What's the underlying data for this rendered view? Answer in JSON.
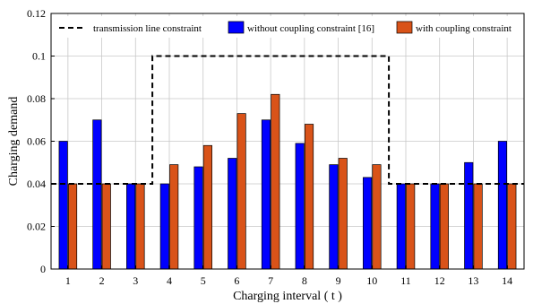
{
  "chart_data": {
    "type": "bar",
    "xlabel": "Charging interval ( t )",
    "ylabel": "Charging demand",
    "ylim": [
      0,
      0.12
    ],
    "yticks": [
      "0",
      "0.02",
      "0.04",
      "0.06",
      "0.08",
      "0.1",
      "0.12"
    ],
    "categories": [
      "1",
      "2",
      "3",
      "4",
      "5",
      "6",
      "7",
      "8",
      "9",
      "10",
      "11",
      "12",
      "13",
      "14"
    ],
    "grid": true,
    "legend_position": "top",
    "series": [
      {
        "name": "without coupling constraint [16]",
        "color": "#0000ff",
        "values": [
          0.06,
          0.07,
          0.04,
          0.04,
          0.048,
          0.052,
          0.07,
          0.059,
          0.049,
          0.043,
          0.04,
          0.04,
          0.05,
          0.06
        ]
      },
      {
        "name": "with coupling constraint",
        "color": "#d95319",
        "values": [
          0.04,
          0.04,
          0.04,
          0.049,
          0.058,
          0.073,
          0.082,
          0.068,
          0.052,
          0.049,
          0.04,
          0.04,
          0.04,
          0.04
        ]
      }
    ],
    "constraint_line": {
      "name": "transmission line constraint",
      "color": "#000000",
      "style": "dashed",
      "points": [
        {
          "x": 0.5,
          "y": 0.04
        },
        {
          "x": 3.5,
          "y": 0.04
        },
        {
          "x": 3.5,
          "y": 0.1
        },
        {
          "x": 10.5,
          "y": 0.1
        },
        {
          "x": 10.5,
          "y": 0.04
        },
        {
          "x": 14.5,
          "y": 0.04
        }
      ]
    }
  }
}
